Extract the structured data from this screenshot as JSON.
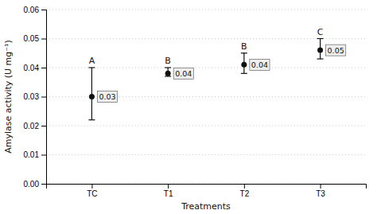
{
  "chart_data": {
    "type": "scatter",
    "categories": [
      "TC",
      "T1",
      "T2",
      "T3"
    ],
    "values": [
      0.03,
      0.038,
      0.041,
      0.046
    ],
    "error_lower": [
      0.008,
      0.001,
      0.003,
      0.003
    ],
    "error_upper": [
      0.01,
      0.002,
      0.004,
      0.004
    ],
    "data_labels": true,
    "value_labels": [
      "0.03",
      "0.04",
      "0.04",
      "0.05"
    ],
    "annotations": [
      "A",
      "B",
      "B",
      "C"
    ],
    "xlabel": "Treatments",
    "ylabel": "Amylase activity (U mg⁻¹)",
    "ylim": [
      0,
      0.06
    ],
    "yticks": [
      {
        "value": 0,
        "label": "0.00"
      },
      0.01,
      0.02,
      0.03,
      0.04,
      0.05,
      0.06
    ],
    "grid": true,
    "color": "#111111"
  }
}
